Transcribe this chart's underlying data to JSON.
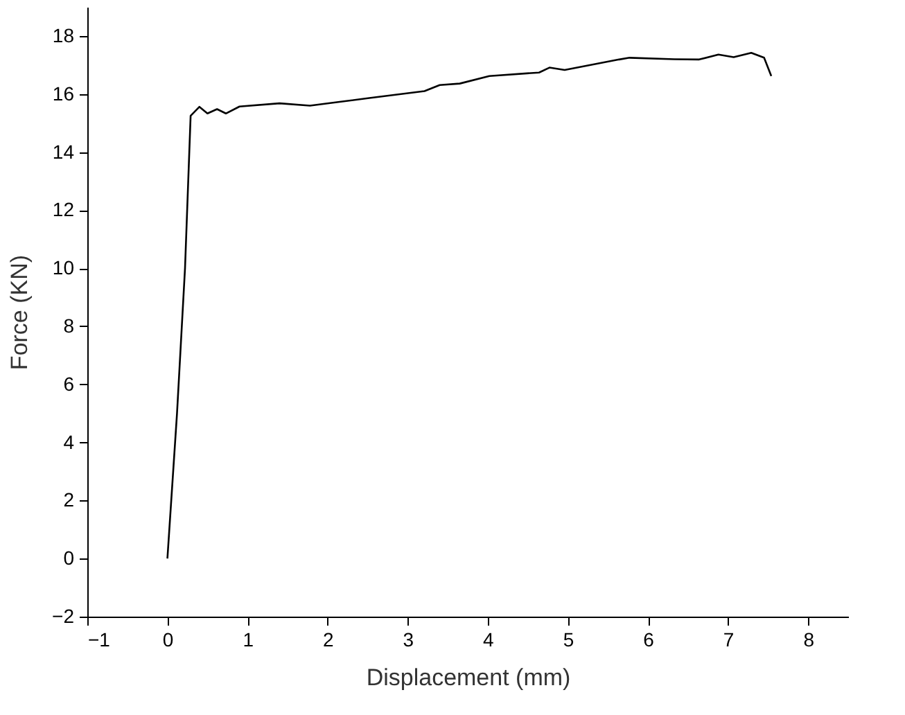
{
  "chart_data": {
    "type": "line",
    "xlabel": "Displacement (mm)",
    "ylabel": "Force (KN)",
    "xlim": [
      -1,
      8.5
    ],
    "ylim": [
      -2,
      19
    ],
    "xticks": [
      -1,
      0,
      1,
      2,
      3,
      4,
      5,
      6,
      7,
      8
    ],
    "yticks": [
      -2,
      0,
      2,
      4,
      6,
      8,
      10,
      12,
      14,
      16,
      18
    ],
    "grid": false,
    "marker": "none",
    "line_style": "solid",
    "series": [
      {
        "color": "#000000",
        "x": [
          0,
          0.12,
          0.22,
          0.29,
          0.4,
          0.5,
          0.62,
          0.73,
          0.9,
          1.4,
          1.78,
          2.15,
          2.52,
          3.21,
          3.4,
          3.65,
          4.02,
          4.64,
          4.77,
          4.96,
          5.64,
          5.77,
          6.33,
          6.64,
          6.88,
          7.07,
          7.29,
          7.45,
          7.54
        ],
        "values": [
          0,
          5,
          10,
          15.25,
          15.56,
          15.33,
          15.48,
          15.33,
          15.57,
          15.68,
          15.6,
          15.73,
          15.86,
          16.1,
          16.31,
          16.36,
          16.62,
          16.74,
          16.91,
          16.83,
          17.19,
          17.25,
          17.2,
          17.19,
          17.36,
          17.27,
          17.42,
          17.25,
          16.62
        ]
      }
    ]
  }
}
